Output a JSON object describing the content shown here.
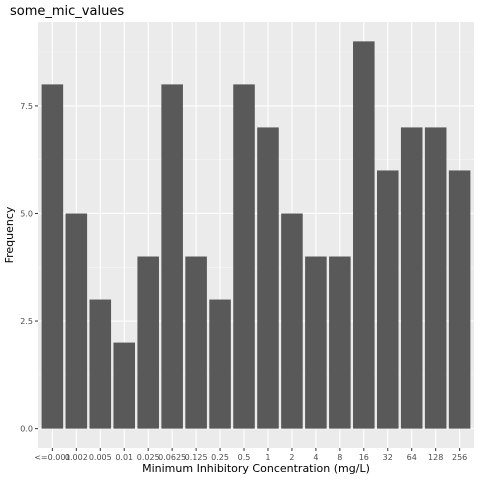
{
  "chart_data": {
    "type": "bar",
    "title": "some_mic_values",
    "xlabel": "Minimum Inhibitory Concentration (mg/L)",
    "ylabel": "Frequency",
    "categories": [
      "<=0.001",
      "0.002",
      "0.005",
      "0.01",
      "0.025",
      "0.0625",
      "0.125",
      "0.25",
      "0.5",
      "1",
      "2",
      "4",
      "8",
      "16",
      "32",
      "64",
      "128",
      "256"
    ],
    "values": [
      8,
      5,
      3,
      2,
      4,
      8,
      4,
      3,
      8,
      7,
      5,
      4,
      4,
      9,
      6,
      7,
      7,
      6
    ],
    "ylim": [
      -0.45,
      9.45
    ],
    "yticks": [
      0,
      2.5,
      5,
      7.5
    ],
    "ytick_labels": [
      "0.0",
      "2.5",
      "5.0",
      "7.5"
    ],
    "grid": true,
    "legend": "none",
    "colors": {
      "bar": "#595959",
      "panel": "#ebebeb",
      "grid_major": "#ffffff",
      "grid_minor": "#f5f5f5"
    }
  }
}
